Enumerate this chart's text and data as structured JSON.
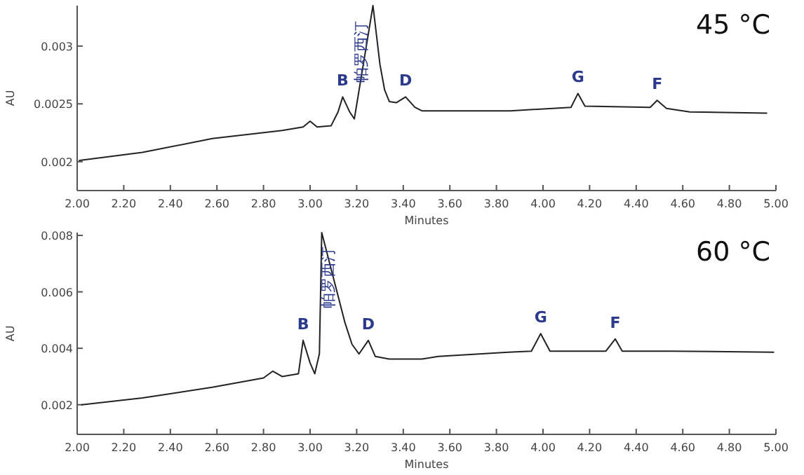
{
  "chart_data": [
    {
      "type": "line",
      "title": "45 °C",
      "xlabel": "Minutes",
      "ylabel": "AU",
      "xlim": [
        2.0,
        5.0
      ],
      "ylim": [
        0.00175,
        0.00335
      ],
      "xticks": [
        {
          "value": 2.0,
          "label": "2.00"
        },
        {
          "value": 2.2,
          "label": "2.20"
        },
        {
          "value": 2.4,
          "label": "2.40"
        },
        {
          "value": 2.6,
          "label": "2.60"
        },
        {
          "value": 2.8,
          "label": "2.80"
        },
        {
          "value": 3.0,
          "label": "3.00"
        },
        {
          "value": 3.2,
          "label": "3.20"
        },
        {
          "value": 3.4,
          "label": "3.40"
        },
        {
          "value": 3.6,
          "label": "3.60"
        },
        {
          "value": 3.8,
          "label": "3.80"
        },
        {
          "value": 4.0,
          "label": "4.00"
        },
        {
          "value": 4.2,
          "label": "4.20"
        },
        {
          "value": 4.4,
          "label": "4.40"
        },
        {
          "value": 4.6,
          "label": "4.60"
        },
        {
          "value": 4.8,
          "label": "4.80"
        },
        {
          "value": 5.0,
          "label": "5.00"
        }
      ],
      "yticks": [
        0.002,
        0.0025,
        0.003
      ],
      "series": [
        {
          "color": "#222222",
          "x": [
            2.01,
            2.28,
            2.58,
            2.88,
            2.97,
            3.0,
            3.03,
            3.09,
            3.12,
            3.14,
            3.17,
            3.19,
            3.27,
            3.3,
            3.32,
            3.34,
            3.37,
            3.41,
            3.45,
            3.48,
            3.86,
            4.12,
            4.15,
            4.18,
            4.46,
            4.49,
            4.53,
            4.63,
            4.96
          ],
          "values": [
            0.00201,
            0.00208,
            0.0022,
            0.00227,
            0.0023,
            0.00235,
            0.0023,
            0.00231,
            0.00243,
            0.00256,
            0.00243,
            0.00237,
            0.00335,
            0.00284,
            0.00262,
            0.00252,
            0.00251,
            0.00256,
            0.00247,
            0.00244,
            0.00244,
            0.00247,
            0.00259,
            0.00248,
            0.00247,
            0.00253,
            0.00246,
            0.00243,
            0.00242
          ]
        }
      ],
      "annotations": [
        {
          "text": "B",
          "x": 3.14,
          "y": 0.00256
        },
        {
          "text": "帕罗西汀",
          "x": 3.24,
          "y": 0.00295
        },
        {
          "text": "D",
          "x": 3.41,
          "y": 0.00256
        },
        {
          "text": "G",
          "x": 4.15,
          "y": 0.00259
        },
        {
          "text": "F",
          "x": 4.49,
          "y": 0.00253
        }
      ]
    },
    {
      "type": "line",
      "title": "60 °C",
      "xlabel": "Minutes",
      "ylabel": "AU",
      "xlim": [
        2.0,
        5.0
      ],
      "ylim": [
        0.00095,
        0.0081
      ],
      "xticks": [
        {
          "value": 2.0,
          "label": "2.00"
        },
        {
          "value": 2.2,
          "label": "2.20"
        },
        {
          "value": 2.4,
          "label": "2.40"
        },
        {
          "value": 2.6,
          "label": "2.60"
        },
        {
          "value": 2.8,
          "label": "2.80"
        },
        {
          "value": 3.0,
          "label": "3.00"
        },
        {
          "value": 3.2,
          "label": "3.20"
        },
        {
          "value": 3.4,
          "label": "3.40"
        },
        {
          "value": 3.6,
          "label": "3.60"
        },
        {
          "value": 3.8,
          "label": "3.80"
        },
        {
          "value": 4.0,
          "label": "4.00"
        },
        {
          "value": 4.2,
          "label": "4.20"
        },
        {
          "value": 4.4,
          "label": "4.40"
        },
        {
          "value": 4.6,
          "label": "4.60"
        },
        {
          "value": 4.8,
          "label": "4.80"
        },
        {
          "value": 5.0,
          "label": "5.00"
        }
      ],
      "yticks": [
        0.002,
        0.004,
        0.006,
        0.008
      ],
      "series": [
        {
          "color": "#222222",
          "x": [
            2.02,
            2.28,
            2.58,
            2.8,
            2.84,
            2.88,
            2.95,
            2.97,
            3.0,
            3.02,
            3.04,
            3.05,
            3.15,
            3.18,
            3.21,
            3.25,
            3.28,
            3.34,
            3.48,
            3.55,
            3.85,
            3.95,
            3.99,
            4.03,
            4.27,
            4.31,
            4.34,
            4.55,
            4.99
          ],
          "values": [
            0.002,
            0.00224,
            0.00262,
            0.00295,
            0.00319,
            0.003,
            0.0031,
            0.00428,
            0.00348,
            0.0031,
            0.00381,
            0.0081,
            0.0049,
            0.00414,
            0.0038,
            0.00428,
            0.00371,
            0.00362,
            0.00362,
            0.00371,
            0.00386,
            0.0039,
            0.00452,
            0.0039,
            0.0039,
            0.00433,
            0.0039,
            0.0039,
            0.00386
          ]
        }
      ],
      "annotations": [
        {
          "text": "B",
          "x": 2.97,
          "y": 0.00428
        },
        {
          "text": "帕罗西汀",
          "x": 3.1,
          "y": 0.0065
        },
        {
          "text": "D",
          "x": 3.25,
          "y": 0.00428
        },
        {
          "text": "G",
          "x": 3.99,
          "y": 0.00452
        },
        {
          "text": "F",
          "x": 4.31,
          "y": 0.00433
        }
      ]
    }
  ]
}
